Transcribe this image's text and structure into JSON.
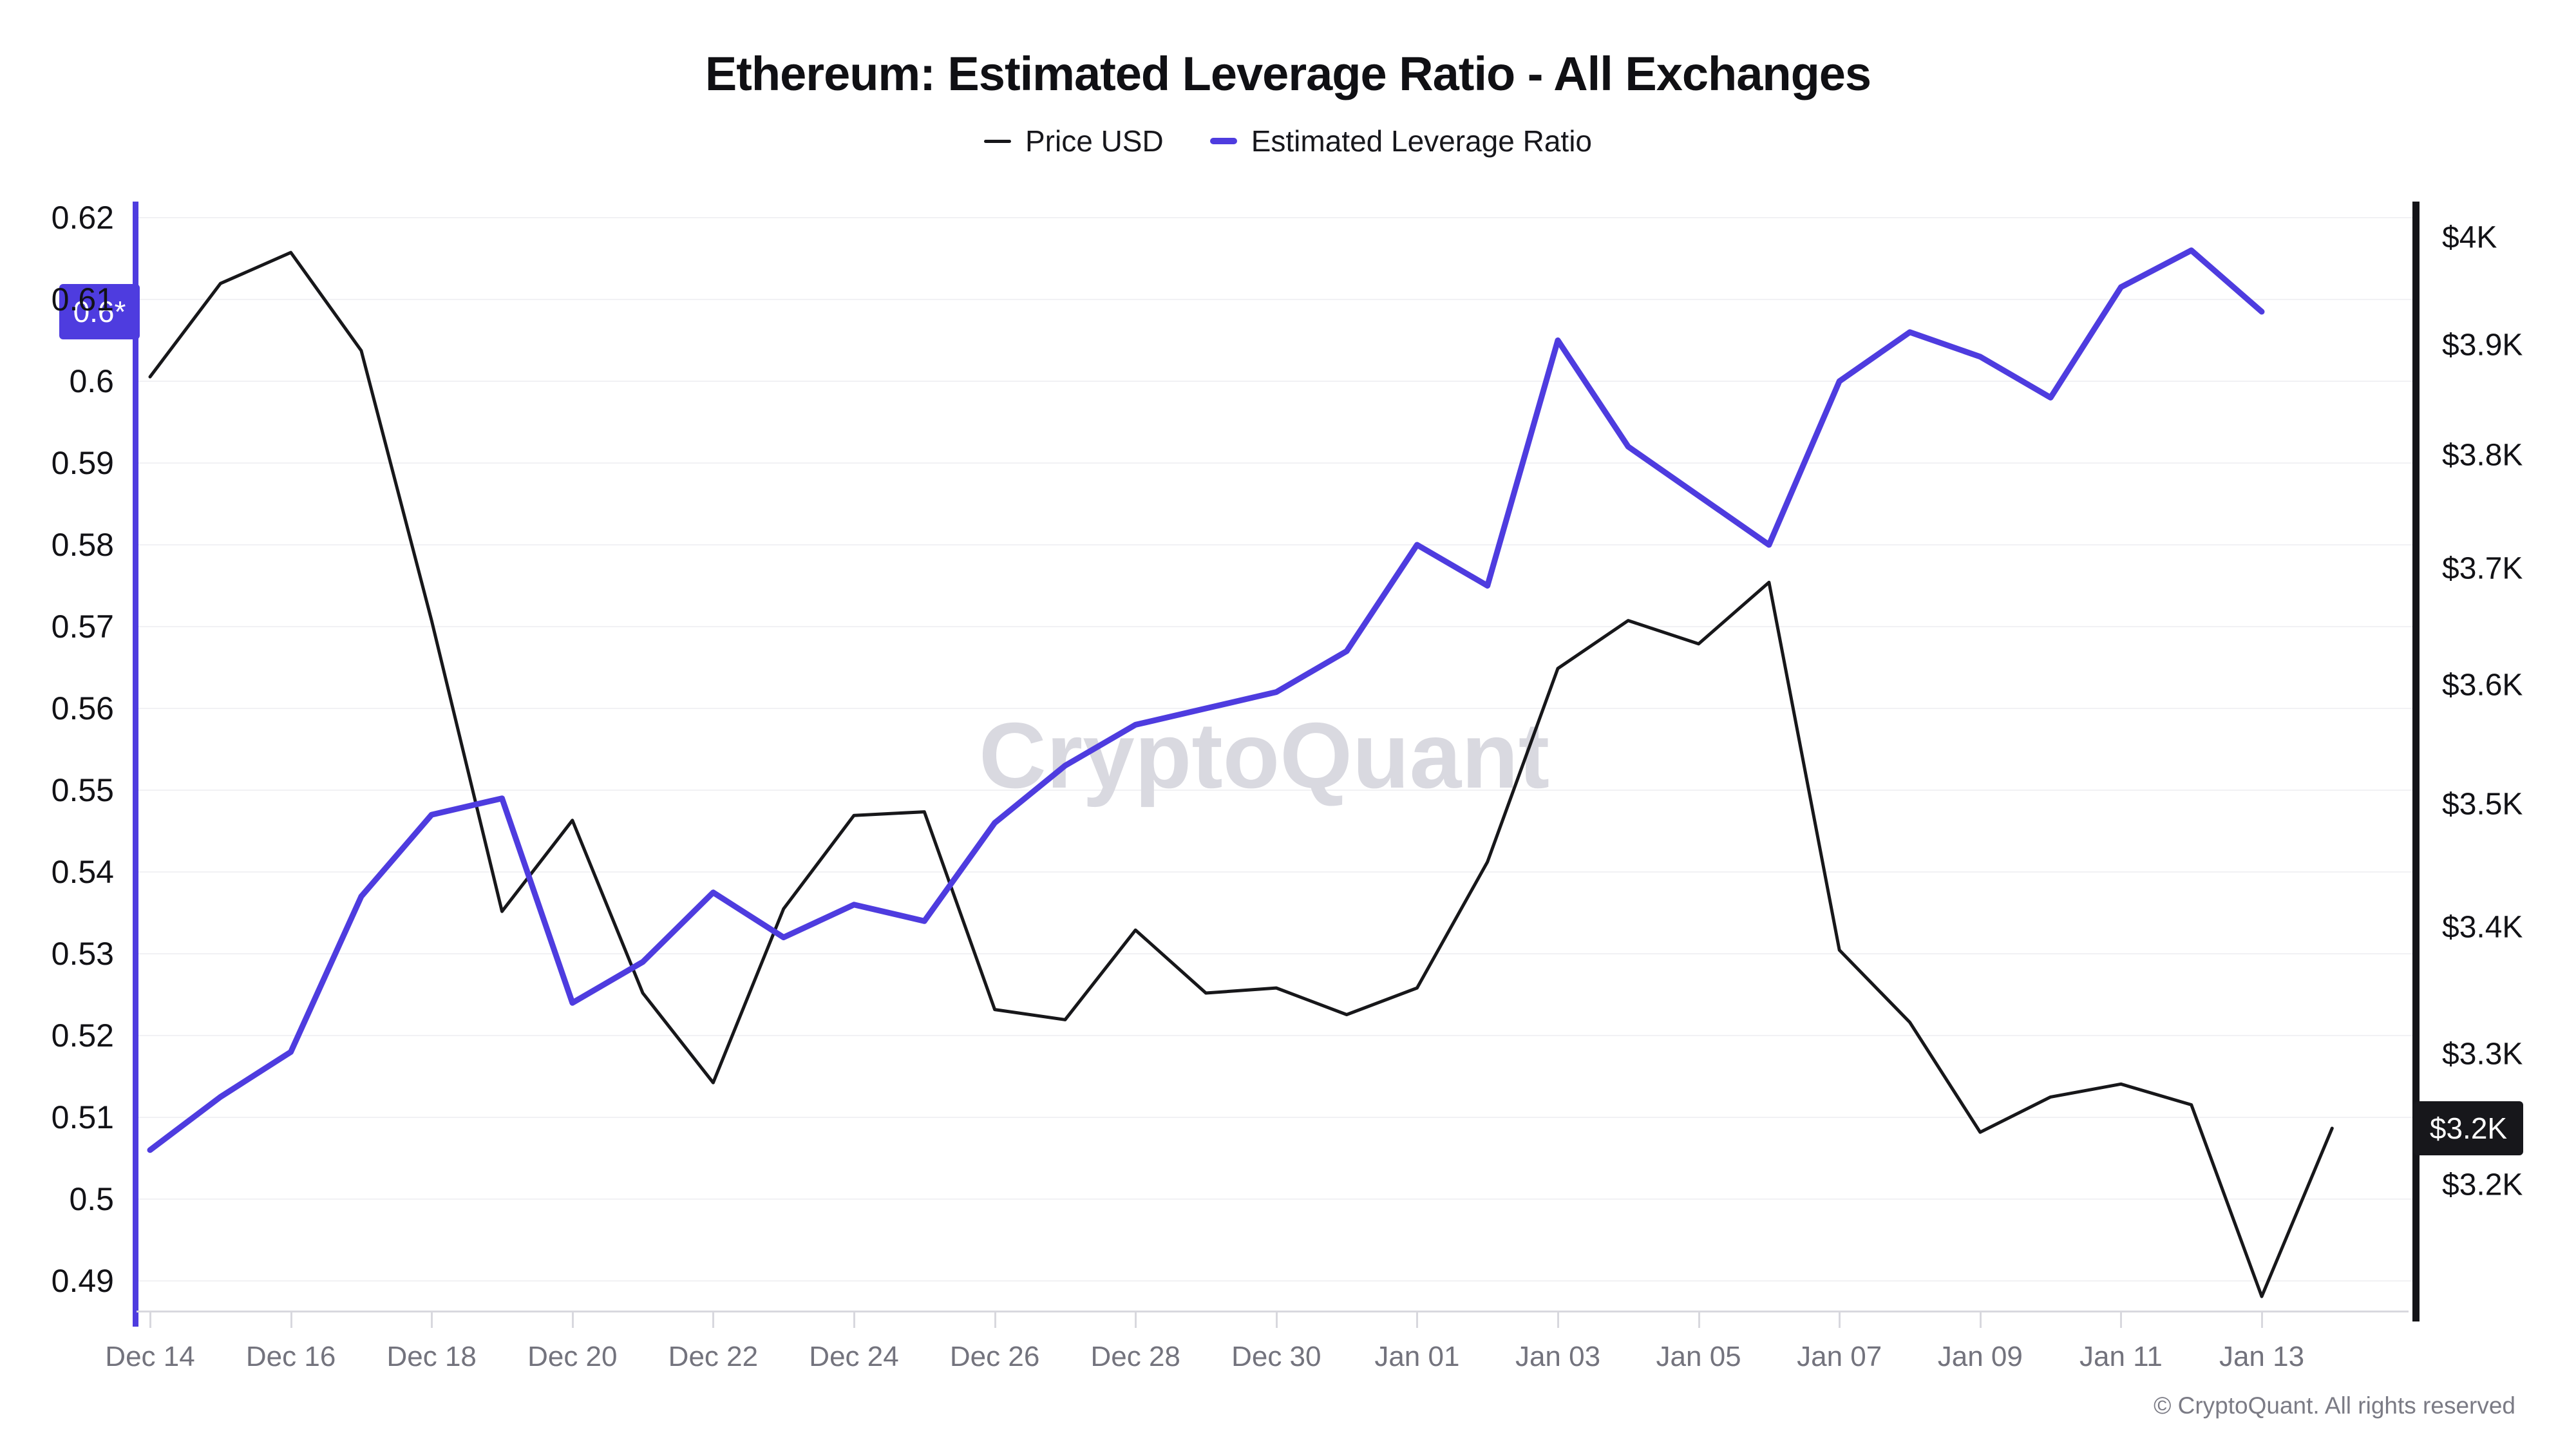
{
  "title": "Ethereum: Estimated Leverage Ratio - All Exchanges",
  "legend": [
    {
      "label": "Price USD",
      "color": "#17171a"
    },
    {
      "label": "Estimated Leverage Ratio",
      "color": "#4E3CDF"
    }
  ],
  "watermark": "CryptoQuant",
  "footer": "© CryptoQuant. All rights reserved",
  "badges": {
    "leverage_current": "0.6*",
    "price_current": "$3.2K"
  },
  "colors": {
    "accent_purple": "#4E3CDF",
    "price_black": "#17171a",
    "gridline": "#f1f1f4",
    "axis_gray": "#d8d8de",
    "xlabel_gray": "#73737d",
    "watermark_gray": "#d9d9e0"
  },
  "chart_data": {
    "type": "line",
    "title": "Ethereum: Estimated Leverage Ratio - All Exchanges",
    "x": [
      "Dec 14",
      "Dec 15",
      "Dec 16",
      "Dec 17",
      "Dec 18",
      "Dec 19",
      "Dec 20",
      "Dec 21",
      "Dec 22",
      "Dec 23",
      "Dec 24",
      "Dec 25",
      "Dec 26",
      "Dec 27",
      "Dec 28",
      "Dec 29",
      "Dec 30",
      "Dec 31",
      "Jan 01",
      "Jan 02",
      "Jan 03",
      "Jan 04",
      "Jan 05",
      "Jan 06",
      "Jan 07",
      "Jan 08",
      "Jan 09",
      "Jan 10",
      "Jan 11",
      "Jan 12",
      "Jan 13",
      "Jan 14"
    ],
    "series": [
      {
        "name": "Price USD",
        "axis": "right",
        "color": "#17171a",
        "values": [
          3871,
          3957,
          3986,
          3895,
          3655,
          3413,
          3487,
          3348,
          3278,
          3415,
          3491,
          3494,
          3335,
          3327,
          3398,
          3348,
          3352,
          3331,
          3352,
          3453,
          3614,
          3655,
          3635,
          3688,
          3382,
          3325,
          3240,
          3267,
          3277,
          3261,
          3117,
          3243
        ]
      },
      {
        "name": "Estimated Leverage Ratio",
        "axis": "left",
        "color": "#4E3CDF",
        "values": [
          0.506,
          0.5125,
          0.518,
          0.537,
          0.547,
          0.549,
          0.524,
          0.529,
          0.5375,
          0.532,
          0.536,
          0.534,
          0.546,
          0.553,
          0.558,
          0.56,
          0.562,
          0.567,
          0.58,
          0.575,
          0.605,
          0.592,
          0.586,
          0.58,
          0.6,
          0.606,
          0.603,
          0.598,
          0.6115,
          0.616,
          0.6085,
          null
        ]
      }
    ],
    "left_axis": {
      "label": "Estimated Leverage Ratio",
      "min": 0.49,
      "max": 0.62,
      "scale": "linear",
      "tick_values": [
        0.62,
        0.61,
        0.6,
        0.59,
        0.58,
        0.57,
        0.56,
        0.55,
        0.54,
        0.53,
        0.52,
        0.51,
        0.5,
        0.49
      ],
      "tick_labels": [
        "0.62",
        "0.61",
        "0.6",
        "0.59",
        "0.58",
        "0.57",
        "0.56",
        "0.55",
        "0.54",
        "0.53",
        "0.52",
        "0.51",
        "0.5",
        "0.49"
      ]
    },
    "right_axis": {
      "label": "Price USD",
      "min": 3100,
      "max": 4000,
      "scale": "log",
      "tick_values": [
        4000,
        3900,
        3800,
        3700,
        3600,
        3500,
        3400,
        3300,
        3200
      ],
      "tick_labels": [
        "$4K",
        "$3.9K",
        "$3.8K",
        "$3.7K",
        "$3.6K",
        "$3.5K",
        "$3.4K",
        "$3.3K",
        "$3.2K"
      ]
    },
    "x_axis": {
      "tick_day_indices": [
        0,
        2,
        4,
        6,
        8,
        10,
        12,
        14,
        16,
        18,
        20,
        22,
        24,
        26,
        28,
        30
      ],
      "tick_labels": [
        "Dec 14",
        "Dec 16",
        "Dec 18",
        "Dec 20",
        "Dec 22",
        "Dec 24",
        "Dec 26",
        "Dec 28",
        "Dec 30",
        "Jan 01",
        "Jan 03",
        "Jan 05",
        "Jan 07",
        "Jan 09",
        "Jan 11",
        "Jan 13"
      ]
    },
    "grid": "horizontal-only",
    "legend_position": "top-center",
    "last_values": {
      "leverage": 0.6085,
      "price_usd": 3243
    }
  }
}
